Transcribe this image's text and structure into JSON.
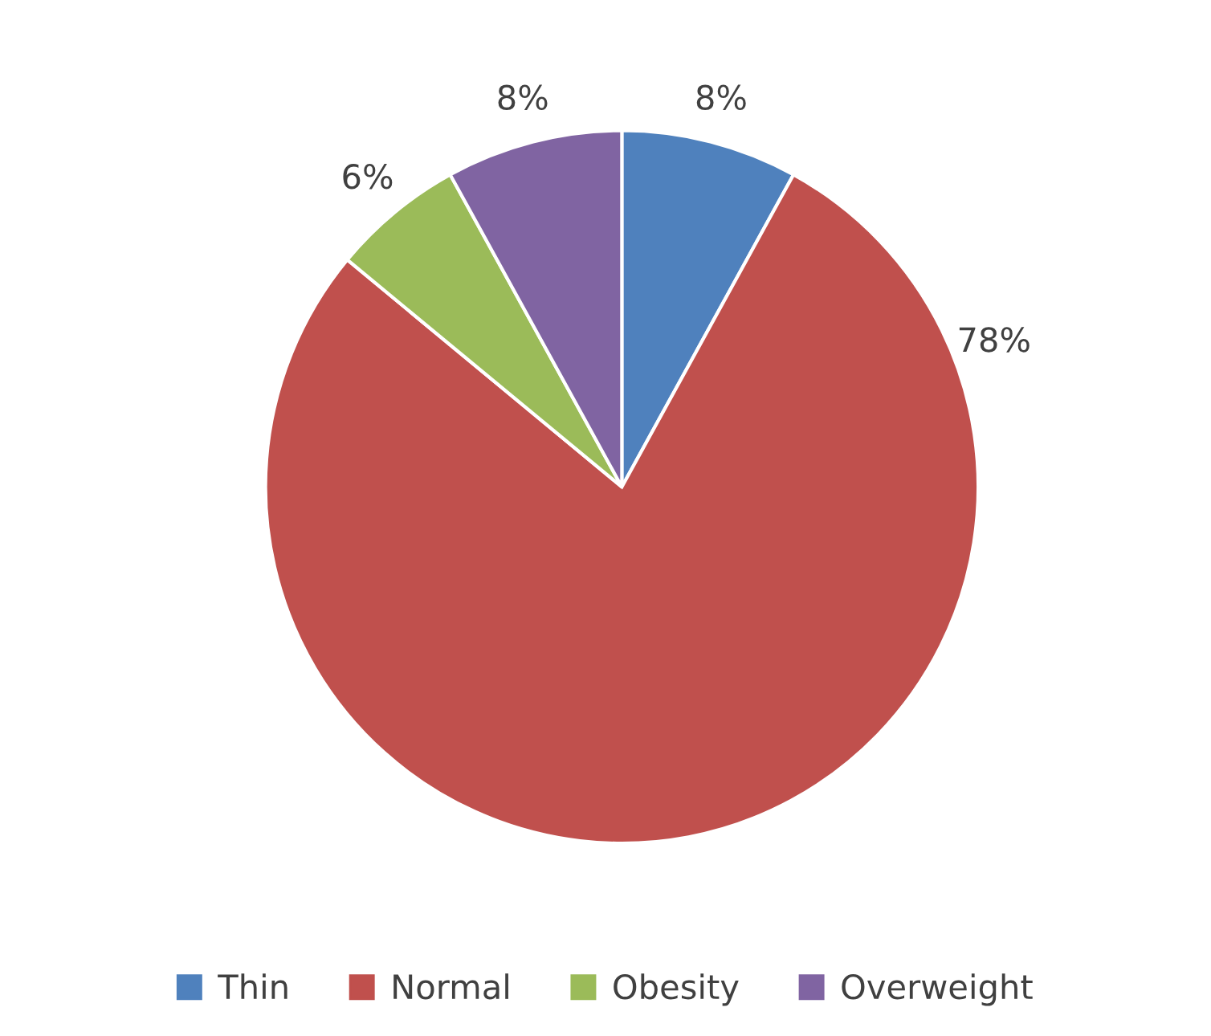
{
  "chart_data": {
    "type": "pie",
    "categories": [
      "Thin",
      "Normal",
      "Obesity",
      "Overweight"
    ],
    "values": [
      8,
      78,
      6,
      8
    ],
    "value_labels": [
      "8%",
      "78%",
      "6%",
      "8%"
    ],
    "colors": [
      "#4f81bd",
      "#c0504d",
      "#9bbb59",
      "#8064a2"
    ],
    "legend": "bottom"
  }
}
